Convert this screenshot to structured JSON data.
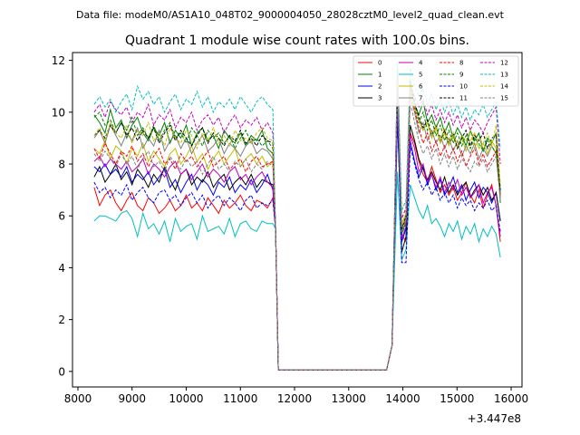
{
  "chart_data": {
    "type": "line",
    "suptitle": "Data file: modeM0/AS1A10_048T02_9000004050_28028cztM0_level2_quad_clean.evt",
    "title": "Quadrant 1 module wise count rates with 100.0s bins.",
    "xlabel": "",
    "ylabel": "",
    "x_offset_label": "+3.447e8",
    "xlim": [
      7900,
      16200
    ],
    "ylim": [
      -0.6,
      12.3
    ],
    "xticks": [
      8000,
      9000,
      10000,
      11000,
      12000,
      13000,
      14000,
      15000,
      16000
    ],
    "xtick_labels": [
      "8000",
      "9000",
      "10000",
      "11000",
      "12000",
      "13000",
      "14000",
      "15000",
      "16000"
    ],
    "yticks": [
      0,
      2,
      4,
      6,
      8,
      10,
      12
    ],
    "ytick_labels": [
      "0",
      "2",
      "4",
      "6",
      "8",
      "10",
      "12"
    ],
    "grid": false,
    "legend_position": "top-right",
    "legend_columns": 4,
    "segments": [
      {
        "x_start": 8300,
        "x_end": 11600
      },
      {
        "x_start": 13900,
        "x_end": 15800
      }
    ],
    "gap_x": [
      11650,
      11700,
      13700,
      13800
    ],
    "gap_y": [
      5.5,
      0.05,
      0.05,
      1.0
    ],
    "series": [
      {
        "name": "0",
        "color": "#ff0000",
        "style": "solid",
        "seg1": [
          7.1,
          6.4,
          6.8,
          7.0,
          6.5,
          6.2,
          6.6,
          6.9,
          6.4,
          6.2,
          6.7,
          6.5,
          6.1,
          6.3,
          6.6,
          6.2,
          6.4,
          6.8,
          6.3,
          6.5,
          6.2,
          6.7,
          6.4,
          6.1,
          6.6,
          6.3,
          6.5,
          6.8,
          6.4,
          6.2,
          6.6,
          6.5,
          6.3,
          6.7
        ],
        "seg2": [
          10.7,
          5.3,
          5.0,
          9.2,
          8.8,
          8.1,
          7.6,
          7.3,
          7.9,
          7.4,
          6.9,
          7.2,
          6.8,
          7.1,
          6.6,
          6.9,
          7.3,
          6.8,
          6.5,
          7.0,
          6.3,
          6.8,
          7.2,
          6.4,
          5.0
        ]
      },
      {
        "name": "1",
        "color": "#008000",
        "style": "solid",
        "seg1": [
          9.9,
          9.6,
          9.2,
          10.1,
          9.4,
          9.7,
          9.0,
          9.5,
          9.8,
          9.2,
          8.9,
          9.4,
          9.1,
          9.6,
          8.8,
          9.3,
          9.0,
          9.5,
          8.7,
          9.2,
          9.4,
          8.9,
          9.1,
          8.6,
          9.3,
          9.0,
          8.8,
          9.2,
          8.7,
          9.1,
          8.9,
          9.3,
          8.6,
          8.4
        ],
        "seg2": [
          10.9,
          5.3,
          5.8,
          10.9,
          10.3,
          9.9,
          10.4,
          9.6,
          9.9,
          9.4,
          9.8,
          9.2,
          9.6,
          9.0,
          9.4,
          9.1,
          8.7,
          9.3,
          8.9,
          9.2,
          8.5,
          9.0,
          8.8,
          9.2,
          6.5
        ]
      },
      {
        "name": "2",
        "color": "#0000ff",
        "style": "solid",
        "seg1": [
          7.9,
          7.7,
          8.0,
          7.6,
          7.8,
          7.5,
          7.9,
          7.3,
          7.6,
          7.4,
          7.7,
          7.2,
          7.5,
          7.8,
          7.1,
          7.4,
          6.9,
          7.3,
          7.6,
          7.0,
          7.4,
          7.2,
          6.8,
          7.3,
          7.1,
          7.5,
          6.9,
          7.2,
          7.0,
          7.4,
          6.9,
          7.2,
          7.6,
          7.0
        ],
        "seg2": [
          9.7,
          5.0,
          5.5,
          8.9,
          8.1,
          7.5,
          7.9,
          7.2,
          7.6,
          7.0,
          7.4,
          6.8,
          7.1,
          7.5,
          6.9,
          7.2,
          6.6,
          7.0,
          7.3,
          6.7,
          7.1,
          6.9,
          6.5,
          6.9,
          5.8
        ]
      },
      {
        "name": "3",
        "color": "#000000",
        "style": "solid",
        "seg1": [
          7.5,
          7.9,
          7.3,
          7.6,
          8.0,
          7.4,
          7.7,
          7.2,
          7.8,
          7.5,
          7.1,
          7.6,
          7.3,
          7.9,
          7.4,
          7.0,
          7.6,
          7.8,
          7.2,
          7.5,
          7.3,
          7.7,
          7.1,
          7.4,
          7.6,
          7.0,
          7.3,
          7.5,
          7.2,
          7.6,
          7.1,
          7.4,
          7.3,
          7.2
        ],
        "seg2": [
          10.1,
          4.6,
          5.2,
          9.5,
          8.9,
          8.2,
          7.8,
          7.4,
          7.7,
          7.3,
          7.0,
          7.5,
          6.9,
          7.2,
          6.8,
          7.1,
          7.3,
          6.7,
          7.0,
          7.2,
          6.8,
          7.1,
          6.6,
          6.9,
          5.8
        ]
      },
      {
        "name": "4",
        "color": "#bf00bf",
        "style": "solid",
        "seg1": [
          8.1,
          8.3,
          7.9,
          8.2,
          8.0,
          7.8,
          8.1,
          7.7,
          7.9,
          8.2,
          7.6,
          8.0,
          7.8,
          7.5,
          7.9,
          8.1,
          7.6,
          7.8,
          7.4,
          7.7,
          8.0,
          7.5,
          7.8,
          7.6,
          7.3,
          7.7,
          7.9,
          7.4,
          7.6,
          7.2,
          7.5,
          7.7,
          7.3,
          7.1
        ],
        "seg2": [
          10.3,
          5.1,
          5.6,
          9.1,
          8.6,
          7.7,
          8.0,
          7.3,
          7.6,
          7.1,
          7.5,
          6.9,
          7.3,
          7.0,
          7.4,
          6.8,
          7.1,
          6.7,
          6.9,
          7.2,
          6.5,
          6.9,
          7.1,
          6.4,
          5.2
        ]
      },
      {
        "name": "5",
        "color": "#00bfbf",
        "style": "solid",
        "seg1": [
          5.8,
          6.0,
          6.0,
          5.9,
          5.8,
          6.1,
          6.2,
          5.9,
          5.2,
          6.1,
          5.5,
          5.7,
          5.3,
          5.8,
          5.0,
          5.9,
          5.4,
          5.6,
          5.7,
          5.1,
          6.0,
          5.4,
          5.5,
          5.6,
          5.3,
          5.9,
          5.2,
          5.7,
          5.8,
          5.5,
          5.4,
          5.8,
          5.7,
          5.7
        ],
        "seg2": [
          7.7,
          4.3,
          4.7,
          7.2,
          6.7,
          6.2,
          5.9,
          6.4,
          5.7,
          5.9,
          5.6,
          5.2,
          5.7,
          5.4,
          5.8,
          5.1,
          5.6,
          5.3,
          5.7,
          5.0,
          5.5,
          5.2,
          5.6,
          5.3,
          4.4
        ]
      },
      {
        "name": "6",
        "color": "#bfbf00",
        "style": "solid",
        "seg1": [
          8.6,
          8.4,
          8.9,
          8.2,
          8.7,
          8.5,
          8.0,
          8.6,
          8.3,
          8.8,
          8.1,
          8.5,
          8.2,
          7.9,
          8.4,
          8.6,
          8.0,
          8.3,
          8.7,
          8.1,
          8.4,
          7.8,
          8.2,
          8.5,
          8.0,
          8.3,
          8.6,
          7.9,
          8.2,
          8.4,
          8.0,
          8.3,
          7.9,
          8.1
        ],
        "seg2": [
          11.2,
          5.7,
          6.1,
          11.3,
          10.2,
          9.7,
          9.3,
          9.6,
          9.0,
          9.4,
          8.8,
          9.2,
          8.7,
          9.1,
          8.6,
          9.0,
          8.5,
          8.9,
          9.2,
          8.6,
          8.8,
          8.4,
          8.9,
          8.6,
          7.0
        ]
      },
      {
        "name": "7",
        "color": "#808080",
        "style": "solid",
        "seg1": [
          9.0,
          9.3,
          8.8,
          9.5,
          9.1,
          8.7,
          9.2,
          8.9,
          9.4,
          8.6,
          9.0,
          8.7,
          9.3,
          8.5,
          8.9,
          9.1,
          8.6,
          9.0,
          8.4,
          8.8,
          9.1,
          8.5,
          8.7,
          9.0,
          8.4,
          8.8,
          8.6,
          8.3,
          8.7,
          8.9,
          8.4,
          8.6,
          8.5,
          8.2
        ],
        "seg2": [
          11.0,
          5.5,
          6.0,
          10.6,
          10.0,
          9.2,
          9.6,
          8.9,
          9.3,
          8.8,
          9.1,
          8.6,
          9.0,
          8.5,
          8.9,
          8.3,
          8.7,
          8.4,
          8.8,
          8.2,
          8.6,
          8.3,
          8.7,
          8.4,
          6.7
        ]
      },
      {
        "name": "8",
        "color": "#ff0000",
        "style": "dashed",
        "seg1": [
          8.6,
          8.2,
          8.8,
          8.4,
          8.0,
          8.5,
          8.3,
          8.7,
          8.1,
          8.4,
          7.9,
          8.3,
          8.6,
          8.0,
          8.2,
          7.8,
          8.4,
          8.1,
          8.3,
          7.9,
          8.2,
          8.5,
          7.9,
          8.1,
          8.3,
          7.8,
          8.0,
          8.2,
          7.7,
          8.1,
          8.3,
          7.9,
          8.0,
          8.1
        ],
        "seg2": [
          11.5,
          5.4,
          5.9,
          10.8,
          10.1,
          9.4,
          8.8,
          9.2,
          8.5,
          8.9,
          8.3,
          8.7,
          8.2,
          8.6,
          8.1,
          8.5,
          7.9,
          8.3,
          8.6,
          8.0,
          8.4,
          7.9,
          8.2,
          8.5,
          6.8
        ]
      },
      {
        "name": "9",
        "color": "#008000",
        "style": "dashed",
        "seg1": [
          9.8,
          10.0,
          9.5,
          9.7,
          9.2,
          9.6,
          9.3,
          9.8,
          9.1,
          9.4,
          9.0,
          9.5,
          8.9,
          9.3,
          9.6,
          9.0,
          9.2,
          8.8,
          9.4,
          9.1,
          8.7,
          9.3,
          9.0,
          9.2,
          8.8,
          9.1,
          8.6,
          9.0,
          9.3,
          8.8,
          9.0,
          8.7,
          8.9,
          8.6
        ],
        "seg2": [
          11.4,
          5.3,
          5.7,
          11.1,
          10.3,
          9.6,
          10.0,
          9.3,
          9.7,
          9.1,
          9.5,
          8.9,
          9.3,
          8.8,
          9.2,
          8.7,
          9.1,
          8.6,
          9.0,
          8.8,
          8.5,
          8.9,
          8.7,
          8.4,
          6.9
        ]
      },
      {
        "name": "10",
        "color": "#0000ff",
        "style": "dashed",
        "seg1": [
          7.3,
          6.9,
          7.1,
          6.7,
          7.0,
          6.8,
          7.2,
          6.6,
          6.9,
          7.1,
          6.7,
          6.5,
          6.9,
          7.0,
          6.6,
          6.8,
          6.4,
          6.7,
          6.9,
          6.5,
          6.8,
          6.3,
          6.6,
          6.8,
          6.4,
          6.7,
          6.5,
          6.2,
          6.6,
          6.8,
          6.3,
          6.5,
          6.4,
          6.6
        ],
        "seg2": [
          10.2,
          4.2,
          4.2,
          8.7,
          8.0,
          7.4,
          7.0,
          7.3,
          6.8,
          7.1,
          6.6,
          6.9,
          6.5,
          6.8,
          6.3,
          6.7,
          6.4,
          6.6,
          6.2,
          6.5,
          6.3,
          6.6,
          6.2,
          6.4,
          5.4
        ]
      },
      {
        "name": "11",
        "color": "#000000",
        "style": "dashed",
        "seg1": [
          9.1,
          9.3,
          9.0,
          9.5,
          9.2,
          9.6,
          9.1,
          9.4,
          8.9,
          9.3,
          9.0,
          9.4,
          8.8,
          9.2,
          9.5,
          8.9,
          9.3,
          9.0,
          8.7,
          9.1,
          9.4,
          8.8,
          9.2,
          9.0,
          8.7,
          9.1,
          8.9,
          9.3,
          8.8,
          9.0,
          8.7,
          9.1,
          8.9,
          8.8
        ],
        "seg2": [
          11.6,
          5.5,
          6.0,
          11.2,
          10.4,
          9.8,
          9.4,
          9.7,
          9.1,
          9.5,
          8.9,
          9.3,
          8.8,
          9.2,
          8.6,
          9.0,
          9.3,
          8.7,
          9.1,
          8.9,
          9.2,
          8.6,
          9.0,
          9.1,
          7.0
        ]
      },
      {
        "name": "12",
        "color": "#bf00bf",
        "style": "dashed",
        "seg1": [
          10.0,
          10.3,
          9.8,
          10.4,
          10.1,
          9.9,
          10.2,
          9.6,
          10.0,
          9.8,
          10.3,
          9.5,
          9.9,
          9.7,
          10.1,
          9.4,
          9.8,
          9.6,
          10.0,
          9.3,
          9.7,
          9.9,
          9.5,
          9.8,
          9.2,
          9.6,
          9.9,
          9.4,
          9.7,
          9.5,
          9.8,
          9.3,
          9.6,
          9.2
        ],
        "seg2": [
          11.8,
          5.9,
          6.3,
          11.0,
          10.6,
          10.2,
          10.5,
          9.9,
          10.3,
          9.7,
          10.1,
          9.6,
          10.0,
          9.5,
          9.9,
          9.4,
          9.8,
          9.3,
          9.7,
          9.5,
          9.2,
          9.6,
          9.9,
          10.2,
          8.0
        ]
      },
      {
        "name": "13",
        "color": "#00bfbf",
        "style": "dashed",
        "seg1": [
          10.3,
          10.6,
          10.2,
          10.5,
          10.0,
          10.4,
          10.7,
          10.1,
          11.0,
          10.5,
          10.8,
          10.3,
          10.6,
          10.0,
          10.4,
          10.7,
          10.1,
          10.5,
          10.3,
          10.8,
          10.2,
          10.6,
          10.0,
          10.4,
          10.2,
          10.5,
          10.1,
          10.6,
          10.3,
          10.0,
          10.4,
          10.6,
          10.3,
          10.1
        ],
        "seg2": [
          11.9,
          6.2,
          6.6,
          11.7,
          11.0,
          10.6,
          10.9,
          10.3,
          10.7,
          10.1,
          10.5,
          10.0,
          10.4,
          9.9,
          10.3,
          9.8,
          10.2,
          9.7,
          10.1,
          9.9,
          10.3,
          9.8,
          10.1,
          10.4,
          8.6
        ]
      },
      {
        "name": "14",
        "color": "#bfbf00",
        "style": "dashed",
        "seg1": [
          9.1,
          9.4,
          8.9,
          9.6,
          9.2,
          9.0,
          9.5,
          8.8,
          9.3,
          9.1,
          9.6,
          8.9,
          9.2,
          8.7,
          9.4,
          9.0,
          8.8,
          9.3,
          9.1,
          8.6,
          9.2,
          8.9,
          9.4,
          8.8,
          9.1,
          8.7,
          9.3,
          8.9,
          9.0,
          8.8,
          9.2,
          9.4,
          9.0,
          8.9
        ],
        "seg2": [
          11.3,
          5.6,
          6.1,
          10.9,
          10.2,
          9.7,
          9.3,
          9.6,
          9.1,
          9.5,
          8.9,
          9.4,
          8.8,
          9.2,
          8.7,
          9.1,
          8.9,
          9.3,
          8.6,
          9.0,
          8.8,
          9.2,
          8.7,
          9.5,
          7.2
        ]
      },
      {
        "name": "15",
        "color": "#808080",
        "style": "dashed",
        "seg1": [
          8.4,
          8.1,
          8.5,
          8.2,
          7.9,
          8.4,
          8.0,
          8.3,
          7.8,
          8.2,
          8.5,
          7.9,
          8.1,
          7.7,
          8.3,
          8.0,
          7.8,
          8.2,
          7.9,
          8.1,
          7.6,
          8.0,
          8.3,
          7.8,
          8.0,
          7.7,
          8.1,
          7.9,
          8.2,
          7.7,
          8.0,
          7.8,
          8.1,
          7.9
        ],
        "seg2": [
          10.9,
          5.4,
          5.8,
          10.4,
          9.6,
          8.9,
          8.4,
          8.7,
          8.2,
          8.6,
          8.0,
          8.4,
          7.9,
          8.3,
          7.8,
          8.2,
          8.0,
          7.7,
          8.1,
          7.9,
          8.2,
          7.7,
          8.0,
          8.3,
          6.6
        ]
      }
    ]
  }
}
